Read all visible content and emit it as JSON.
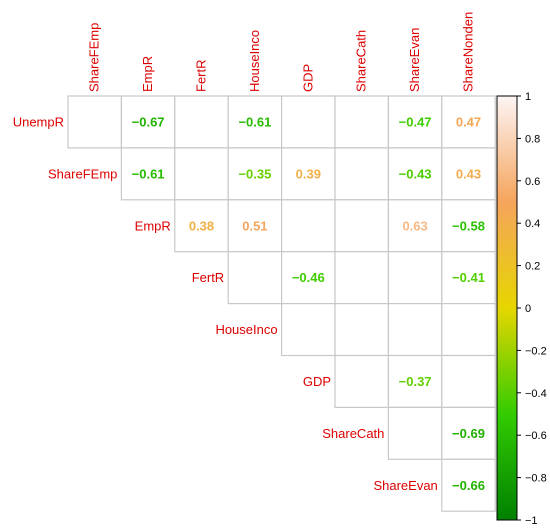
{
  "chart_data": {
    "type": "heatmap",
    "variant": "upper-triangle correlation matrix (diagonal omitted), blank cells = non-significant",
    "row_labels": [
      "UnempR",
      "ShareFEmp",
      "EmpR",
      "FertR",
      "HouseInco",
      "GDP",
      "ShareCath",
      "ShareEvan"
    ],
    "col_labels": [
      "ShareFEmp",
      "EmpR",
      "FertR",
      "HouseInco",
      "GDP",
      "ShareCath",
      "ShareEvan",
      "ShareNonden"
    ],
    "values": [
      [
        null,
        -0.67,
        null,
        -0.61,
        null,
        null,
        -0.47,
        0.47
      ],
      [
        null,
        -0.61,
        null,
        -0.35,
        0.39,
        null,
        -0.43,
        0.43
      ],
      [
        null,
        null,
        0.38,
        0.51,
        null,
        null,
        0.63,
        -0.58
      ],
      [
        null,
        null,
        null,
        null,
        -0.46,
        null,
        null,
        -0.41
      ],
      [
        null,
        null,
        null,
        null,
        null,
        null,
        null,
        null
      ],
      [
        null,
        null,
        null,
        null,
        null,
        null,
        -0.37,
        null
      ],
      [
        null,
        null,
        null,
        null,
        null,
        null,
        null,
        -0.69
      ],
      [
        null,
        null,
        null,
        null,
        null,
        null,
        null,
        -0.66
      ]
    ],
    "colorbar": {
      "min": -1,
      "max": 1,
      "ticks": [
        "1",
        "0.8",
        "0.6",
        "0.4",
        "0.2",
        "0",
        "−0.2",
        "−0.4",
        "−0.6",
        "−0.8",
        "−1"
      ],
      "stops": [
        {
          "v": -1,
          "color": "#008000"
        },
        {
          "v": -0.5,
          "color": "#33cc00"
        },
        {
          "v": 0,
          "color": "#e6d600"
        },
        {
          "v": 0.5,
          "color": "#f5a45c"
        },
        {
          "v": 1,
          "color": "#fdf5f5"
        }
      ]
    },
    "label_color": "#dd0000",
    "grid_color": "#c8c8c8"
  }
}
